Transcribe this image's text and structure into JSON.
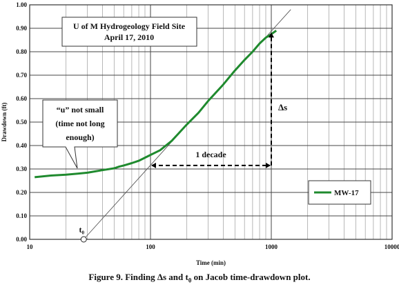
{
  "chart_data": {
    "type": "scatter",
    "x_scale": "log",
    "xlim": [
      10,
      10000
    ],
    "ylim": [
      0,
      1.0
    ],
    "x_ticks": [
      "10",
      "100",
      "1000",
      "10000"
    ],
    "y_ticks": [
      "0.00",
      "0.10",
      "0.20",
      "0.30",
      "0.40",
      "0.50",
      "0.60",
      "0.70",
      "0.80",
      "0.90",
      "1.00"
    ],
    "xlabel": "Time (min)",
    "ylabel": "Drawdown (ft)",
    "grid": true,
    "legend_position": "right",
    "series": [
      {
        "name": "MW-17",
        "color": "#1f8a2e",
        "x": [
          11,
          15,
          20,
          25,
          30,
          40,
          50,
          55,
          60,
          70,
          80,
          100,
          120,
          150,
          200,
          250,
          300,
          400,
          500,
          600,
          700,
          800,
          900,
          1000,
          1100
        ],
        "y": [
          0.265,
          0.272,
          0.276,
          0.28,
          0.284,
          0.295,
          0.303,
          0.31,
          0.315,
          0.325,
          0.335,
          0.36,
          0.38,
          0.42,
          0.49,
          0.54,
          0.59,
          0.66,
          0.72,
          0.765,
          0.8,
          0.835,
          0.86,
          0.875,
          0.89
        ]
      }
    ],
    "jacob_line": {
      "color": "#555555",
      "x": [
        28,
        1450
      ],
      "y": [
        0.0,
        0.98
      ]
    },
    "t0_point": {
      "x": 28,
      "y": 0.0,
      "label": "t₀"
    },
    "delta_s": {
      "x": 1000,
      "y_from": 0.315,
      "y_to": 0.89,
      "label": "Δs"
    },
    "decade": {
      "x_from": 100,
      "x_to": 1000,
      "y": 0.315,
      "label": "1 decade"
    },
    "annotations": {
      "site_title_1": "U of M Hydrogeology Field Site",
      "site_title_2": "April 17, 2010",
      "callout_1": "“u” not small",
      "callout_2": "(time not long",
      "callout_3": "enough)"
    }
  },
  "caption": {
    "prefix": "Figure 9.  Finding Δs and t",
    "sub": "0",
    "suffix": " on Jacob time-drawdown plot."
  }
}
